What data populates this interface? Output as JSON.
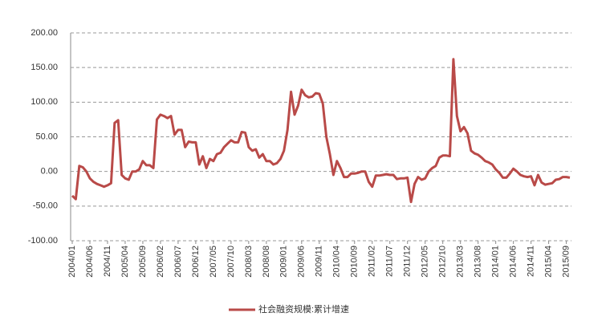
{
  "chart_data": {
    "type": "line",
    "categories": [
      "2004/01",
      null,
      null,
      null,
      null,
      "2004/06",
      null,
      null,
      null,
      null,
      "2004/11",
      null,
      null,
      null,
      null,
      "2005/04",
      null,
      null,
      null,
      null,
      "2005/09",
      null,
      null,
      null,
      null,
      "2006/02",
      null,
      null,
      null,
      null,
      "2006/07",
      null,
      null,
      null,
      null,
      "2006/12",
      null,
      null,
      null,
      null,
      "2007/05",
      null,
      null,
      null,
      null,
      "2007/10",
      null,
      null,
      null,
      null,
      "2008/03",
      null,
      null,
      null,
      null,
      "2008/08",
      null,
      null,
      null,
      null,
      "2009/01",
      null,
      null,
      null,
      null,
      "2009/06",
      null,
      null,
      null,
      null,
      "2009/11",
      null,
      null,
      null,
      null,
      "2010/04",
      null,
      null,
      null,
      null,
      "2010/09",
      null,
      null,
      null,
      null,
      "2011/02",
      null,
      null,
      null,
      null,
      "2011/07",
      null,
      null,
      null,
      null,
      "2011/12",
      null,
      null,
      null,
      null,
      "2012/05",
      null,
      null,
      null,
      null,
      "2012/10",
      null,
      null,
      null,
      null,
      "2013/03",
      null,
      null,
      null,
      null,
      "2013/08",
      null,
      null,
      null,
      null,
      "2014/01",
      null,
      null,
      null,
      null,
      "2014/06",
      null,
      null,
      null,
      null,
      "2014/11",
      null,
      null,
      null,
      null,
      "2015/04",
      null,
      null,
      null,
      null,
      "2015/09",
      null
    ],
    "series": [
      {
        "name": "社会融资规模:累计增速",
        "color": "#b94a48",
        "values": [
          -35,
          -40,
          8,
          6,
          0,
          -10,
          -15,
          -18,
          -20,
          -22,
          -20,
          -17,
          70,
          74,
          -5,
          -10,
          -12,
          0,
          0,
          3,
          15,
          9,
          9,
          5,
          75,
          82,
          80,
          77,
          80,
          53,
          60,
          60,
          35,
          43,
          42,
          42,
          10,
          22,
          5,
          18,
          15,
          25,
          27,
          35,
          40,
          45,
          42,
          42,
          57,
          56,
          35,
          30,
          32,
          20,
          25,
          15,
          15,
          10,
          12,
          18,
          30,
          60,
          115,
          82,
          95,
          118,
          110,
          107,
          108,
          113,
          112,
          98,
          50,
          25,
          -5,
          15,
          5,
          -8,
          -8,
          -3,
          -3,
          -2,
          0,
          0,
          -15,
          -22,
          -6,
          -6,
          -5,
          -4,
          -5,
          -5,
          -11,
          -10,
          -10,
          -9,
          -44,
          -18,
          -8,
          -12,
          -10,
          0,
          5,
          8,
          20,
          23,
          23,
          22,
          162,
          80,
          58,
          64,
          55,
          30,
          26,
          24,
          20,
          15,
          13,
          10,
          3,
          -2,
          -9,
          -9,
          -3,
          4,
          0,
          -5,
          -7,
          -8,
          -7,
          -20,
          -5,
          -16,
          -19,
          -18,
          -17,
          -12,
          -11,
          -8,
          -8,
          -9
        ]
      }
    ],
    "ylim": [
      -100,
      200
    ],
    "yticks": [
      {
        "value": -100,
        "label": "-100.00"
      },
      {
        "value": -50,
        "label": "-50.00"
      },
      {
        "value": 0,
        "label": "0.00"
      },
      {
        "value": 50,
        "label": "50.00"
      },
      {
        "value": 100,
        "label": "100.00"
      },
      {
        "value": 150,
        "label": "150.00"
      },
      {
        "value": 200,
        "label": "200.00"
      }
    ],
    "grid": true
  }
}
